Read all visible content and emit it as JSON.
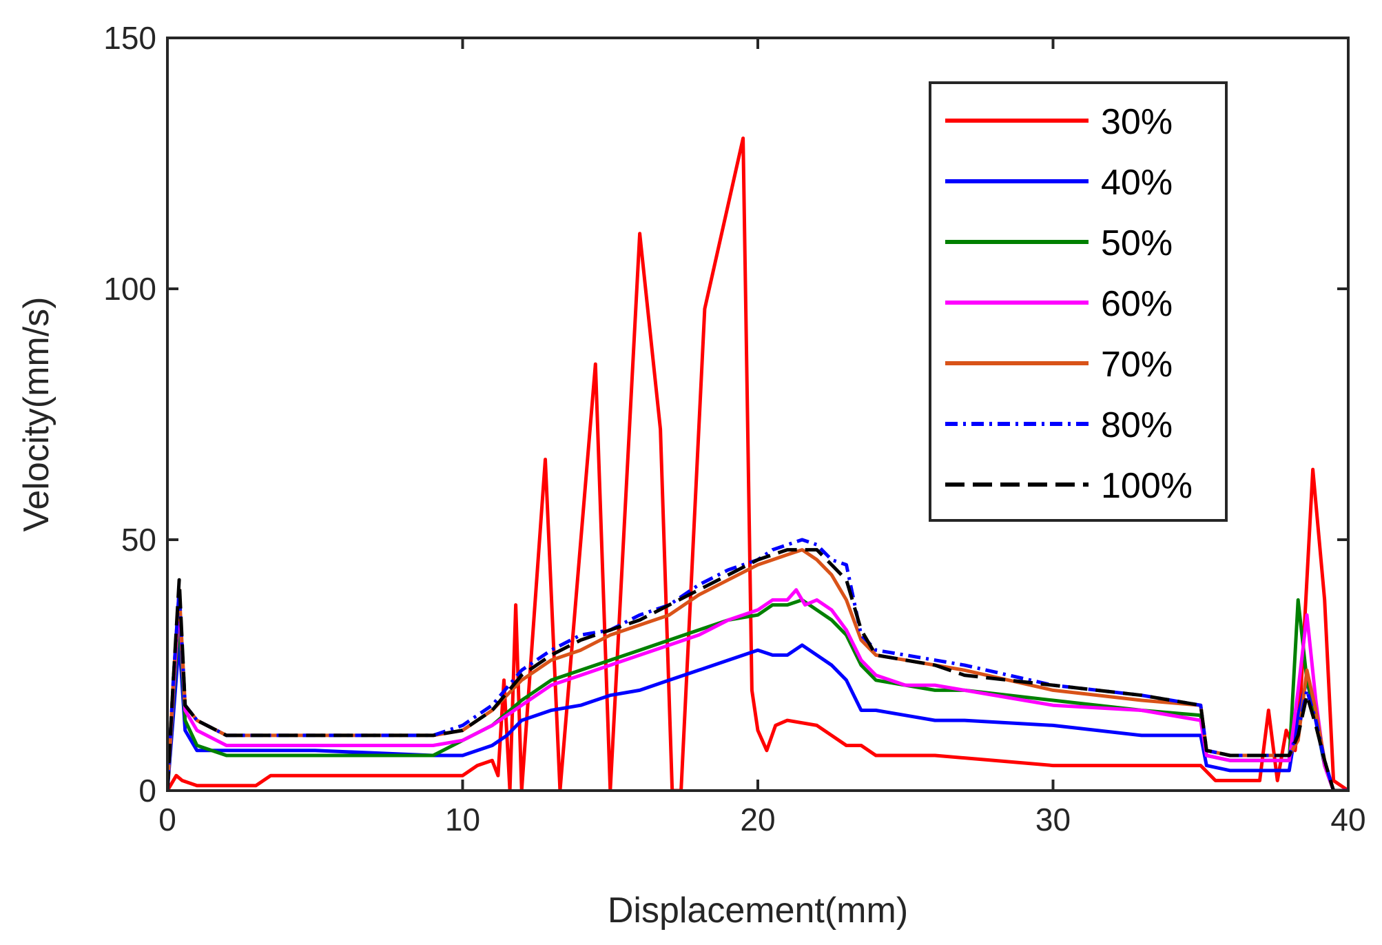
{
  "chart_data": {
    "type": "line",
    "title": "",
    "xlabel": "Displacement(mm)",
    "ylabel": "Velocity(mm/s)",
    "xlim": [
      0,
      40
    ],
    "ylim": [
      0,
      150
    ],
    "xticks": [
      0,
      10,
      20,
      30,
      40
    ],
    "yticks": [
      0,
      50,
      100,
      150
    ],
    "xtick_labels": [
      "0",
      "10",
      "20",
      "30",
      "40"
    ],
    "ytick_labels": [
      "0",
      "50",
      "100",
      "150"
    ],
    "grid": false,
    "legend_position": "top-right",
    "series": [
      {
        "name": "30%",
        "color": "#ff0000",
        "style": "solid",
        "x": [
          0,
          0.3,
          0.5,
          1,
          3,
          3.5,
          8,
          10,
          10.5,
          11,
          11.2,
          11.4,
          11.6,
          11.8,
          12,
          12.8,
          13.3,
          14.5,
          15,
          16,
          16.7,
          17.1,
          17.4,
          18.2,
          19.5,
          19.8,
          20,
          20.3,
          20.6,
          21,
          22,
          22.5,
          23,
          23.5,
          24,
          26,
          28,
          30,
          32,
          34,
          35,
          35.5,
          37,
          37.3,
          37.6,
          37.9,
          38.2,
          38.4,
          38.8,
          39.2,
          39.5,
          40
        ],
        "y": [
          0,
          3,
          2,
          1,
          1,
          3,
          3,
          3,
          5,
          6,
          3,
          22,
          0,
          37,
          0,
          66,
          0,
          85,
          0,
          111,
          72,
          0,
          0,
          96,
          130,
          20,
          12,
          8,
          13,
          14,
          13,
          11,
          9,
          9,
          7,
          7,
          6,
          5,
          5,
          5,
          5,
          2,
          2,
          16,
          2,
          12,
          8,
          20,
          64,
          38,
          2,
          0
        ]
      },
      {
        "name": "40%",
        "color": "#0000ff",
        "style": "solid",
        "x": [
          0,
          0.2,
          0.4,
          0.6,
          1,
          2,
          5,
          9,
          10,
          10.5,
          11,
          11.5,
          12,
          13,
          14,
          15,
          16,
          17,
          18,
          19,
          20,
          20.5,
          21,
          21.5,
          22,
          22.5,
          23,
          23.5,
          24,
          25,
          26,
          27,
          30,
          33,
          35,
          35.2,
          36,
          37,
          38,
          38.3,
          38.6,
          38.9,
          39.2,
          39.5,
          40
        ],
        "y": [
          0,
          15,
          30,
          12,
          8,
          8,
          8,
          7,
          7,
          8,
          9,
          11,
          14,
          16,
          17,
          19,
          20,
          22,
          24,
          26,
          28,
          27,
          27,
          29,
          27,
          25,
          22,
          16,
          16,
          15,
          14,
          14,
          13,
          11,
          11,
          5,
          4,
          4,
          4,
          15,
          22,
          14,
          5,
          0,
          0
        ]
      },
      {
        "name": "50%",
        "color": "#008000",
        "style": "solid",
        "x": [
          0,
          0.2,
          0.4,
          0.6,
          1,
          2,
          5,
          9,
          10,
          11,
          12,
          13,
          14,
          15,
          16,
          17,
          18,
          19,
          20,
          20.5,
          21,
          21.5,
          22,
          22.5,
          23,
          23.5,
          24,
          25,
          26,
          27,
          30,
          33,
          35,
          35.2,
          36,
          37,
          38,
          38.3,
          38.6,
          38.9,
          39.2,
          39.5,
          40
        ],
        "y": [
          0,
          18,
          35,
          14,
          9,
          7,
          7,
          7,
          10,
          13,
          18,
          22,
          24,
          26,
          28,
          30,
          32,
          34,
          35,
          37,
          37,
          38,
          36,
          34,
          31,
          25,
          22,
          21,
          20,
          20,
          18,
          16,
          15,
          7,
          6,
          6,
          6,
          38,
          22,
          15,
          5,
          0,
          0
        ]
      },
      {
        "name": "60%",
        "color": "#ff00ff",
        "style": "solid",
        "x": [
          0,
          0.2,
          0.4,
          0.6,
          1,
          2,
          5,
          9,
          10,
          11,
          12,
          13,
          14,
          15,
          16,
          17,
          18,
          19,
          20,
          20.5,
          21,
          21.3,
          21.6,
          22,
          22.5,
          23,
          23.5,
          24,
          25,
          26,
          27,
          30,
          33,
          35,
          35.2,
          36,
          37,
          38,
          38.3,
          38.6,
          38.9,
          39.2,
          39.5,
          40
        ],
        "y": [
          0,
          20,
          38,
          16,
          12,
          9,
          9,
          9,
          10,
          13,
          17,
          21,
          23,
          25,
          27,
          29,
          31,
          34,
          36,
          38,
          38,
          40,
          37,
          38,
          36,
          32,
          26,
          23,
          21,
          21,
          20,
          17,
          16,
          14,
          7,
          6,
          6,
          6,
          20,
          35,
          18,
          5,
          0,
          0
        ]
      },
      {
        "name": "70%",
        "color": "#d95319",
        "style": "solid",
        "x": [
          0,
          0.2,
          0.4,
          0.6,
          1,
          2,
          5,
          9,
          10,
          11,
          12,
          13,
          14,
          15,
          16,
          17,
          18,
          19,
          20,
          20.5,
          21,
          21.5,
          22,
          22.5,
          23,
          23.5,
          24,
          25,
          26,
          27,
          30,
          33,
          35,
          35.2,
          36,
          37,
          38,
          38.3,
          38.6,
          38.9,
          39.2,
          39.5,
          40
        ],
        "y": [
          0,
          22,
          40,
          17,
          14,
          11,
          11,
          11,
          12,
          16,
          22,
          26,
          28,
          31,
          33,
          35,
          39,
          42,
          45,
          46,
          47,
          48,
          46,
          43,
          38,
          30,
          27,
          26,
          25,
          24,
          20,
          18,
          17,
          8,
          7,
          7,
          7,
          10,
          24,
          16,
          6,
          0,
          0
        ]
      },
      {
        "name": "80%",
        "color": "#0000ff",
        "style": "dashdot",
        "x": [
          0,
          0.2,
          0.4,
          0.6,
          1,
          2,
          5,
          9,
          10,
          11,
          12,
          13,
          14,
          15,
          16,
          17,
          18,
          19,
          20,
          20.5,
          21,
          21.5,
          22,
          22.5,
          23,
          23.5,
          24,
          25,
          26,
          27,
          30,
          33,
          35,
          35.2,
          36,
          37,
          38,
          38.3,
          38.6,
          38.9,
          39.2,
          39.5,
          40
        ],
        "y": [
          0,
          22,
          40,
          17,
          14,
          11,
          11,
          11,
          13,
          17,
          24,
          28,
          31,
          32,
          35,
          37,
          41,
          44,
          46,
          48,
          49,
          50,
          49,
          46,
          45,
          31,
          28,
          27,
          26,
          25,
          21,
          19,
          17,
          8,
          7,
          7,
          7,
          12,
          20,
          14,
          6,
          0,
          0
        ]
      },
      {
        "name": "100%",
        "color": "#000000",
        "style": "dashed",
        "x": [
          0,
          0.2,
          0.4,
          0.6,
          1,
          2,
          5,
          9,
          10,
          11,
          12,
          13,
          14,
          15,
          16,
          17,
          18,
          19,
          20,
          20.5,
          21,
          21.5,
          22,
          22.5,
          23,
          23.5,
          24,
          25,
          26,
          27,
          30,
          33,
          35,
          35.2,
          36,
          37,
          38,
          38.3,
          38.6,
          38.9,
          39.2,
          39.5,
          40
        ],
        "y": [
          0,
          22,
          42,
          17,
          14,
          11,
          11,
          11,
          12,
          16,
          23,
          27,
          30,
          32,
          34,
          37,
          40,
          43,
          46,
          47,
          48,
          48,
          48,
          45,
          42,
          32,
          27,
          26,
          25,
          23,
          21,
          19,
          17,
          8,
          7,
          7,
          7,
          11,
          19,
          13,
          6,
          0,
          0
        ]
      }
    ]
  }
}
